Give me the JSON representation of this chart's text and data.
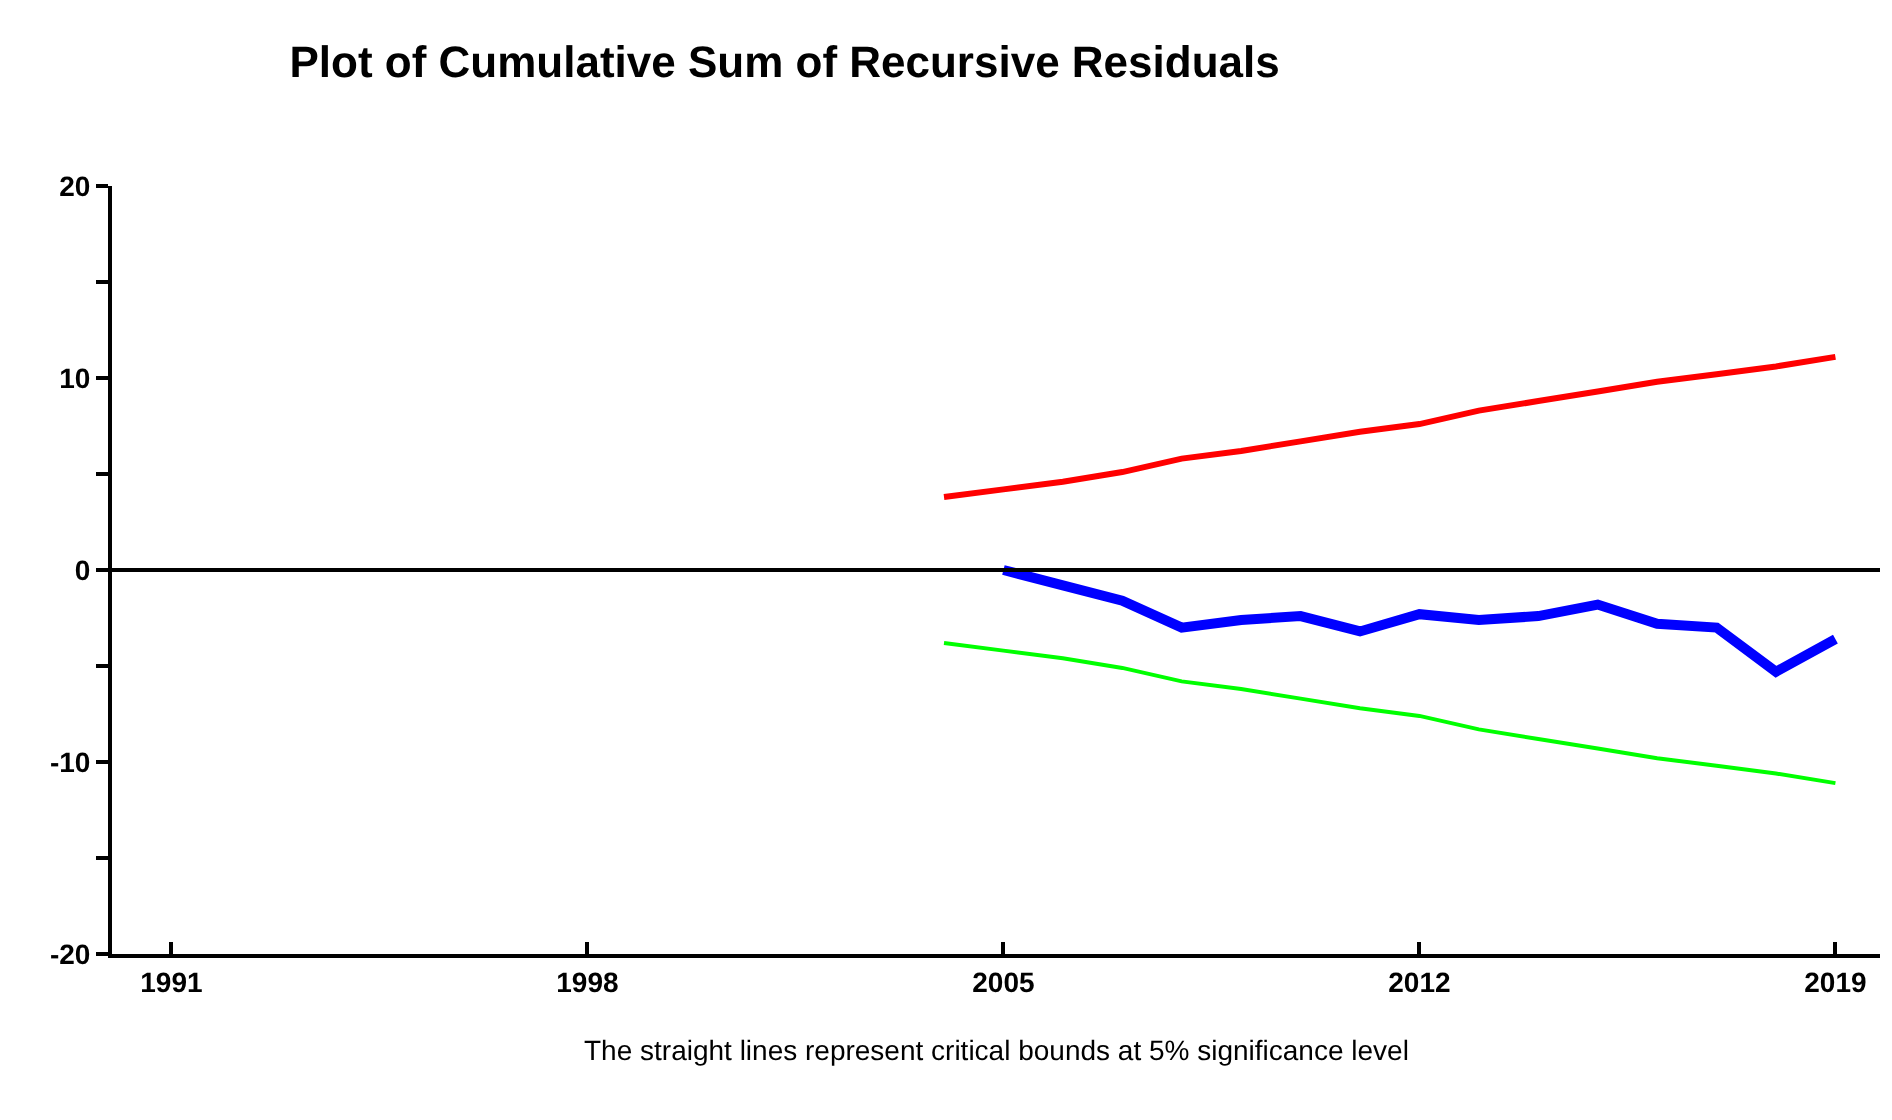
{
  "chart_data": {
    "type": "line",
    "title": "Plot of Cumulative Sum of Recursive Residuals",
    "annotations": [
      "The straight lines represent critical bounds at 5% significance level"
    ],
    "series": [
      {
        "color": "#ff0000",
        "x": [
          2004,
          2005,
          2006,
          2007,
          2008,
          2009,
          2010,
          2011,
          2012,
          2013,
          2014,
          2015,
          2016,
          2017,
          2018,
          2019
        ],
        "values": [
          3.8,
          4.2,
          4.6,
          5.1,
          5.8,
          6.2,
          6.7,
          7.2,
          7.6,
          8.3,
          8.8,
          9.3,
          9.8,
          10.2,
          10.6,
          11.1
        ]
      },
      {
        "color": "#00ff00",
        "x": [
          2004,
          2005,
          2006,
          2007,
          2008,
          2009,
          2010,
          2011,
          2012,
          2013,
          2014,
          2015,
          2016,
          2017,
          2018,
          2019
        ],
        "values": [
          -3.8,
          -4.2,
          -4.6,
          -5.1,
          -5.8,
          -6.2,
          -6.7,
          -7.2,
          -7.6,
          -8.3,
          -8.8,
          -9.3,
          -9.8,
          -10.2,
          -10.6,
          -11.1
        ]
      },
      {
        "color": "#0000ff",
        "x": [
          2005,
          2006,
          2007,
          2008,
          2009,
          2010,
          2011,
          2012,
          2013,
          2014,
          2015,
          2016,
          2017,
          2018,
          2019
        ],
        "values": [
          0,
          -0.8,
          -1.6,
          -3.0,
          -2.6,
          -2.4,
          -3.2,
          -2.3,
          -2.6,
          -2.4,
          -1.8,
          -2.8,
          -3.0,
          -5.3,
          -3.6
        ]
      }
    ],
    "xlim": [
      1990,
      2019.75
    ],
    "xticks": [
      1991,
      1998,
      2005,
      2012,
      2019
    ],
    "ylim": [
      -20,
      20
    ],
    "yticks": [
      -20,
      {
        "value": -15,
        "label": null
      },
      -10,
      {
        "value": -5,
        "label": null
      },
      0,
      {
        "value": 5,
        "label": null
      },
      10,
      {
        "value": 15,
        "label": null
      },
      20
    ],
    "ref_lines": [
      {
        "axis": "y",
        "value": 0,
        "color": "#000000"
      }
    ],
    "marker": "none",
    "line_style": "solid"
  }
}
